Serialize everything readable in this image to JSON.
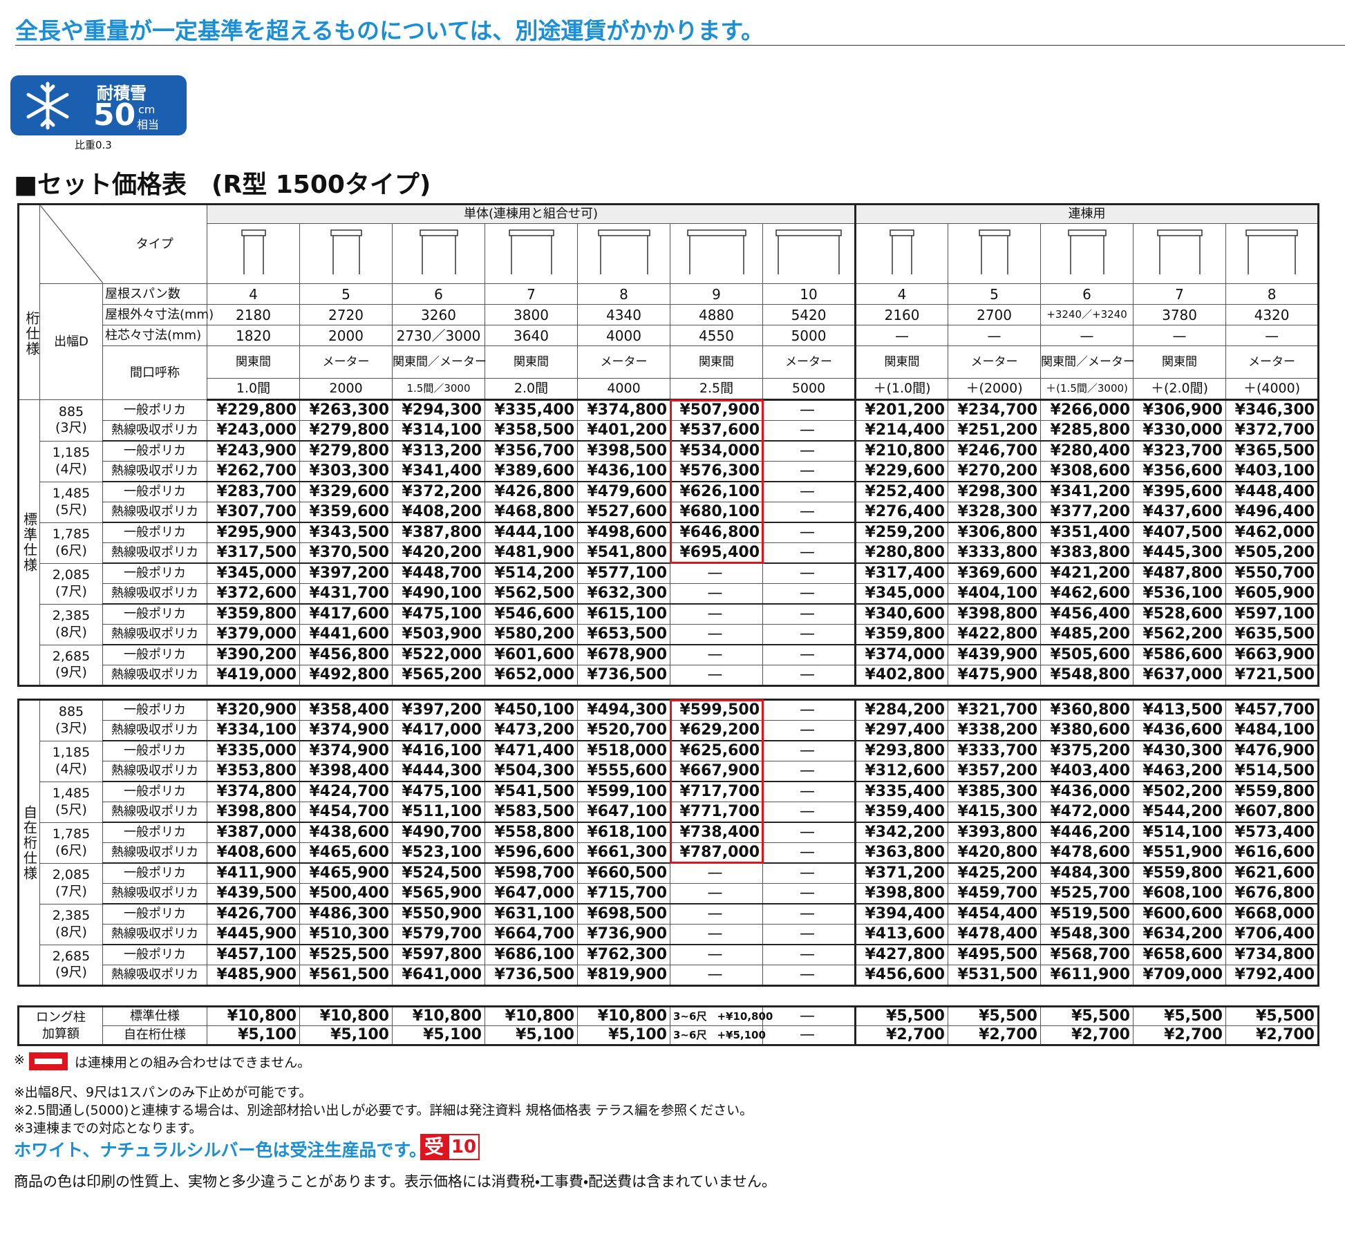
{
  "header": {
    "title": "全長や重量が一定基準を超えるものについては、別途運賃がかかります。"
  },
  "badge": {
    "label": "耐積雪",
    "value": "50",
    "unit": "cm",
    "suffix": "相当",
    "note": "比重0.3"
  },
  "section_title": "■セット価格表　(R型 1500タイプ)",
  "table": {
    "spec_label": "桁仕様",
    "type_label": "タイプ",
    "width_label": "出幅D",
    "row_labels": {
      "span": "屋根スパン数",
      "outer": "屋根外々寸法(mm)",
      "pillar": "柱芯々寸法(mm)",
      "frontage": "間口呼称"
    },
    "groups": [
      {
        "label": "単体(連棟用と組合せ可)",
        "columns": [
          {
            "span": "4",
            "outer": "2180",
            "pillar": "1820",
            "frontage_name": "関東間",
            "frontage": "1.0間"
          },
          {
            "span": "5",
            "outer": "2720",
            "pillar": "2000",
            "frontage_name": "メーター",
            "frontage": "2000"
          },
          {
            "span": "6",
            "outer": "3260",
            "pillar": "2730／3000",
            "frontage_name": "関東間／メーター",
            "frontage": "1.5間／3000"
          },
          {
            "span": "7",
            "outer": "3800",
            "pillar": "3640",
            "frontage_name": "関東間",
            "frontage": "2.0間"
          },
          {
            "span": "8",
            "outer": "4340",
            "pillar": "4000",
            "frontage_name": "メーター",
            "frontage": "4000"
          },
          {
            "span": "9",
            "outer": "4880",
            "pillar": "4550",
            "frontage_name": "関東間",
            "frontage": "2.5間",
            "outlined": true
          },
          {
            "span": "10",
            "outer": "5420",
            "pillar": "5000",
            "frontage_name": "メーター",
            "frontage": "5000"
          }
        ]
      },
      {
        "label": "連棟用",
        "columns": [
          {
            "span": "4",
            "outer": "2160",
            "pillar": "—",
            "frontage_name": "関東間",
            "frontage": "＋(1.0間)"
          },
          {
            "span": "5",
            "outer": "2700",
            "pillar": "—",
            "frontage_name": "メーター",
            "frontage": "＋(2000)"
          },
          {
            "span": "6",
            "outer": "+3240／+3240",
            "pillar": "—",
            "frontage_name": "関東間／メーター",
            "frontage": "＋(1.5間／3000)"
          },
          {
            "span": "7",
            "outer": "3780",
            "pillar": "—",
            "frontage_name": "関東間",
            "frontage": "＋(2.0間)"
          },
          {
            "span": "8",
            "outer": "4320",
            "pillar": "—",
            "frontage_name": "メーター",
            "frontage": "＋(4000)"
          }
        ]
      }
    ],
    "sections": [
      {
        "label": "標準仕様",
        "widths": [
          {
            "width": "885",
            "shaku": "(3尺)",
            "rows": [
              {
                "type": "一般ポリカ",
                "prices": [
                  "¥229,800",
                  "¥263,300",
                  "¥294,300",
                  "¥335,400",
                  "¥374,800",
                  "¥507,900",
                  "—",
                  "¥201,200",
                  "¥234,700",
                  "¥266,000",
                  "¥306,900",
                  "¥346,300"
                ]
              },
              {
                "type": "熱線吸収ポリカ",
                "prices": [
                  "¥243,000",
                  "¥279,800",
                  "¥314,100",
                  "¥358,500",
                  "¥401,200",
                  "¥537,600",
                  "—",
                  "¥214,400",
                  "¥251,200",
                  "¥285,800",
                  "¥330,000",
                  "¥372,700"
                ]
              }
            ]
          },
          {
            "width": "1,185",
            "shaku": "(4尺)",
            "rows": [
              {
                "type": "一般ポリカ",
                "prices": [
                  "¥243,900",
                  "¥279,800",
                  "¥313,200",
                  "¥356,700",
                  "¥398,500",
                  "¥534,000",
                  "—",
                  "¥210,800",
                  "¥246,700",
                  "¥280,400",
                  "¥323,700",
                  "¥365,500"
                ]
              },
              {
                "type": "熱線吸収ポリカ",
                "prices": [
                  "¥262,700",
                  "¥303,300",
                  "¥341,400",
                  "¥389,600",
                  "¥436,100",
                  "¥576,300",
                  "—",
                  "¥229,600",
                  "¥270,200",
                  "¥308,600",
                  "¥356,600",
                  "¥403,100"
                ]
              }
            ]
          },
          {
            "width": "1,485",
            "shaku": "(5尺)",
            "rows": [
              {
                "type": "一般ポリカ",
                "prices": [
                  "¥283,700",
                  "¥329,600",
                  "¥372,200",
                  "¥426,800",
                  "¥479,600",
                  "¥626,100",
                  "—",
                  "¥252,400",
                  "¥298,300",
                  "¥341,200",
                  "¥395,600",
                  "¥448,400"
                ]
              },
              {
                "type": "熱線吸収ポリカ",
                "prices": [
                  "¥307,700",
                  "¥359,600",
                  "¥408,200",
                  "¥468,800",
                  "¥527,600",
                  "¥680,100",
                  "—",
                  "¥276,400",
                  "¥328,300",
                  "¥377,200",
                  "¥437,600",
                  "¥496,400"
                ]
              }
            ]
          },
          {
            "width": "1,785",
            "shaku": "(6尺)",
            "rows": [
              {
                "type": "一般ポリカ",
                "prices": [
                  "¥295,900",
                  "¥343,500",
                  "¥387,800",
                  "¥444,100",
                  "¥498,600",
                  "¥646,800",
                  "—",
                  "¥259,200",
                  "¥306,800",
                  "¥351,400",
                  "¥407,500",
                  "¥462,000"
                ]
              },
              {
                "type": "熱線吸収ポリカ",
                "prices": [
                  "¥317,500",
                  "¥370,500",
                  "¥420,200",
                  "¥481,900",
                  "¥541,800",
                  "¥695,400",
                  "—",
                  "¥280,800",
                  "¥333,800",
                  "¥383,800",
                  "¥445,300",
                  "¥505,200"
                ]
              }
            ]
          },
          {
            "width": "2,085",
            "shaku": "(7尺)",
            "rows": [
              {
                "type": "一般ポリカ",
                "prices": [
                  "¥345,000",
                  "¥397,200",
                  "¥448,700",
                  "¥514,200",
                  "¥577,100",
                  "—",
                  "—",
                  "¥317,400",
                  "¥369,600",
                  "¥421,200",
                  "¥487,800",
                  "¥550,700"
                ]
              },
              {
                "type": "熱線吸収ポリカ",
                "prices": [
                  "¥372,600",
                  "¥431,700",
                  "¥490,100",
                  "¥562,500",
                  "¥632,300",
                  "—",
                  "—",
                  "¥345,000",
                  "¥404,100",
                  "¥462,600",
                  "¥536,100",
                  "¥605,900"
                ]
              }
            ]
          },
          {
            "width": "2,385",
            "shaku": "(8尺)",
            "rows": [
              {
                "type": "一般ポリカ",
                "prices": [
                  "¥359,800",
                  "¥417,600",
                  "¥475,100",
                  "¥546,600",
                  "¥615,100",
                  "—",
                  "—",
                  "¥340,600",
                  "¥398,800",
                  "¥456,400",
                  "¥528,600",
                  "¥597,100"
                ]
              },
              {
                "type": "熱線吸収ポリカ",
                "prices": [
                  "¥379,000",
                  "¥441,600",
                  "¥503,900",
                  "¥580,200",
                  "¥653,500",
                  "—",
                  "—",
                  "¥359,800",
                  "¥422,800",
                  "¥485,200",
                  "¥562,200",
                  "¥635,500"
                ]
              }
            ]
          },
          {
            "width": "2,685",
            "shaku": "(9尺)",
            "rows": [
              {
                "type": "一般ポリカ",
                "prices": [
                  "¥390,200",
                  "¥456,800",
                  "¥522,000",
                  "¥601,600",
                  "¥678,900",
                  "—",
                  "—",
                  "¥374,000",
                  "¥439,900",
                  "¥505,600",
                  "¥586,600",
                  "¥663,900"
                ]
              },
              {
                "type": "熱線吸収ポリカ",
                "prices": [
                  "¥419,000",
                  "¥492,800",
                  "¥565,200",
                  "¥652,000",
                  "¥736,500",
                  "—",
                  "—",
                  "¥402,800",
                  "¥475,900",
                  "¥548,800",
                  "¥637,000",
                  "¥721,500"
                ]
              }
            ]
          }
        ]
      },
      {
        "label": "自在桁仕様",
        "widths": [
          {
            "width": "885",
            "shaku": "(3尺)",
            "rows": [
              {
                "type": "一般ポリカ",
                "prices": [
                  "¥320,900",
                  "¥358,400",
                  "¥397,200",
                  "¥450,100",
                  "¥494,300",
                  "¥599,500",
                  "—",
                  "¥284,200",
                  "¥321,700",
                  "¥360,800",
                  "¥413,500",
                  "¥457,700"
                ]
              },
              {
                "type": "熱線吸収ポリカ",
                "prices": [
                  "¥334,100",
                  "¥374,900",
                  "¥417,000",
                  "¥473,200",
                  "¥520,700",
                  "¥629,200",
                  "—",
                  "¥297,400",
                  "¥338,200",
                  "¥380,600",
                  "¥436,600",
                  "¥484,100"
                ]
              }
            ]
          },
          {
            "width": "1,185",
            "shaku": "(4尺)",
            "rows": [
              {
                "type": "一般ポリカ",
                "prices": [
                  "¥335,000",
                  "¥374,900",
                  "¥416,100",
                  "¥471,400",
                  "¥518,000",
                  "¥625,600",
                  "—",
                  "¥293,800",
                  "¥333,700",
                  "¥375,200",
                  "¥430,300",
                  "¥476,900"
                ]
              },
              {
                "type": "熱線吸収ポリカ",
                "prices": [
                  "¥353,800",
                  "¥398,400",
                  "¥444,300",
                  "¥504,300",
                  "¥555,600",
                  "¥667,900",
                  "—",
                  "¥312,600",
                  "¥357,200",
                  "¥403,400",
                  "¥463,200",
                  "¥514,500"
                ]
              }
            ]
          },
          {
            "width": "1,485",
            "shaku": "(5尺)",
            "rows": [
              {
                "type": "一般ポリカ",
                "prices": [
                  "¥374,800",
                  "¥424,700",
                  "¥475,100",
                  "¥541,500",
                  "¥599,100",
                  "¥717,700",
                  "—",
                  "¥335,400",
                  "¥385,300",
                  "¥436,000",
                  "¥502,200",
                  "¥559,800"
                ]
              },
              {
                "type": "熱線吸収ポリカ",
                "prices": [
                  "¥398,800",
                  "¥454,700",
                  "¥511,100",
                  "¥583,500",
                  "¥647,100",
                  "¥771,700",
                  "—",
                  "¥359,400",
                  "¥415,300",
                  "¥472,000",
                  "¥544,200",
                  "¥607,800"
                ]
              }
            ]
          },
          {
            "width": "1,785",
            "shaku": "(6尺)",
            "rows": [
              {
                "type": "一般ポリカ",
                "prices": [
                  "¥387,000",
                  "¥438,600",
                  "¥490,700",
                  "¥558,800",
                  "¥618,100",
                  "¥738,400",
                  "—",
                  "¥342,200",
                  "¥393,800",
                  "¥446,200",
                  "¥514,100",
                  "¥573,400"
                ]
              },
              {
                "type": "熱線吸収ポリカ",
                "prices": [
                  "¥408,600",
                  "¥465,600",
                  "¥523,100",
                  "¥596,600",
                  "¥661,300",
                  "¥787,000",
                  "—",
                  "¥363,800",
                  "¥420,800",
                  "¥478,600",
                  "¥551,900",
                  "¥616,600"
                ]
              }
            ]
          },
          {
            "width": "2,085",
            "shaku": "(7尺)",
            "rows": [
              {
                "type": "一般ポリカ",
                "prices": [
                  "¥411,900",
                  "¥465,900",
                  "¥524,500",
                  "¥598,700",
                  "¥660,500",
                  "—",
                  "—",
                  "¥371,200",
                  "¥425,200",
                  "¥484,300",
                  "¥559,800",
                  "¥621,600"
                ]
              },
              {
                "type": "熱線吸収ポリカ",
                "prices": [
                  "¥439,500",
                  "¥500,400",
                  "¥565,900",
                  "¥647,000",
                  "¥715,700",
                  "—",
                  "—",
                  "¥398,800",
                  "¥459,700",
                  "¥525,700",
                  "¥608,100",
                  "¥676,800"
                ]
              }
            ]
          },
          {
            "width": "2,385",
            "shaku": "(8尺)",
            "rows": [
              {
                "type": "一般ポリカ",
                "prices": [
                  "¥426,700",
                  "¥486,300",
                  "¥550,900",
                  "¥631,100",
                  "¥698,500",
                  "—",
                  "—",
                  "¥394,400",
                  "¥454,400",
                  "¥519,500",
                  "¥600,600",
                  "¥668,000"
                ]
              },
              {
                "type": "熱線吸収ポリカ",
                "prices": [
                  "¥445,900",
                  "¥510,300",
                  "¥579,700",
                  "¥664,700",
                  "¥736,900",
                  "—",
                  "—",
                  "¥413,600",
                  "¥478,400",
                  "¥548,300",
                  "¥634,200",
                  "¥706,400"
                ]
              }
            ]
          },
          {
            "width": "2,685",
            "shaku": "(9尺)",
            "rows": [
              {
                "type": "一般ポリカ",
                "prices": [
                  "¥457,100",
                  "¥525,500",
                  "¥597,800",
                  "¥686,100",
                  "¥762,300",
                  "—",
                  "—",
                  "¥427,800",
                  "¥495,500",
                  "¥568,700",
                  "¥658,600",
                  "¥734,800"
                ]
              },
              {
                "type": "熱線吸収ポリカ",
                "prices": [
                  "¥485,900",
                  "¥561,500",
                  "¥641,000",
                  "¥736,500",
                  "¥819,900",
                  "—",
                  "—",
                  "¥456,600",
                  "¥531,500",
                  "¥611,900",
                  "¥709,000",
                  "¥792,400"
                ]
              }
            ]
          }
        ]
      }
    ],
    "long_pillar": {
      "label": [
        "ロング柱",
        "加算額"
      ],
      "rows": [
        {
          "label": "標準仕様",
          "prices": [
            "¥10,800",
            "¥10,800",
            "¥10,800",
            "¥10,800",
            "¥10,800",
            "3~6尺　+¥10,800",
            "—",
            "¥5,500",
            "¥5,500",
            "¥5,500",
            "¥5,500",
            "¥5,500"
          ]
        },
        {
          "label": "自在桁仕様",
          "prices": [
            "¥5,100",
            "¥5,100",
            "¥5,100",
            "¥5,100",
            "¥5,100",
            "3~6尺　+¥5,100",
            "—",
            "¥2,700",
            "¥2,700",
            "¥2,700",
            "¥2,700",
            "¥2,700"
          ]
        }
      ]
    }
  },
  "notes": {
    "legend_mark": "※",
    "legend_text": "は連棟用との組み合わせはできません。",
    "lines": [
      "※出幅8尺、9尺は1スパンのみ下止めが可能です。",
      "※2.5間通し(5000)と連棟する場合は、別途部材拾い出しが必要です。詳細は発注資料 規格価格表 テラス編を参照ください。",
      "※3連棟までの対応となります。"
    ],
    "order_text": "ホワイト、ナチュラルシルバー色は受注生産品です。",
    "order_badge": "受",
    "order_days": "10",
    "footer": "商品の色は印刷の性質上、実物と多少違うことがあります。表示価格には消費税・工事費・配送費は含まれていません。"
  }
}
